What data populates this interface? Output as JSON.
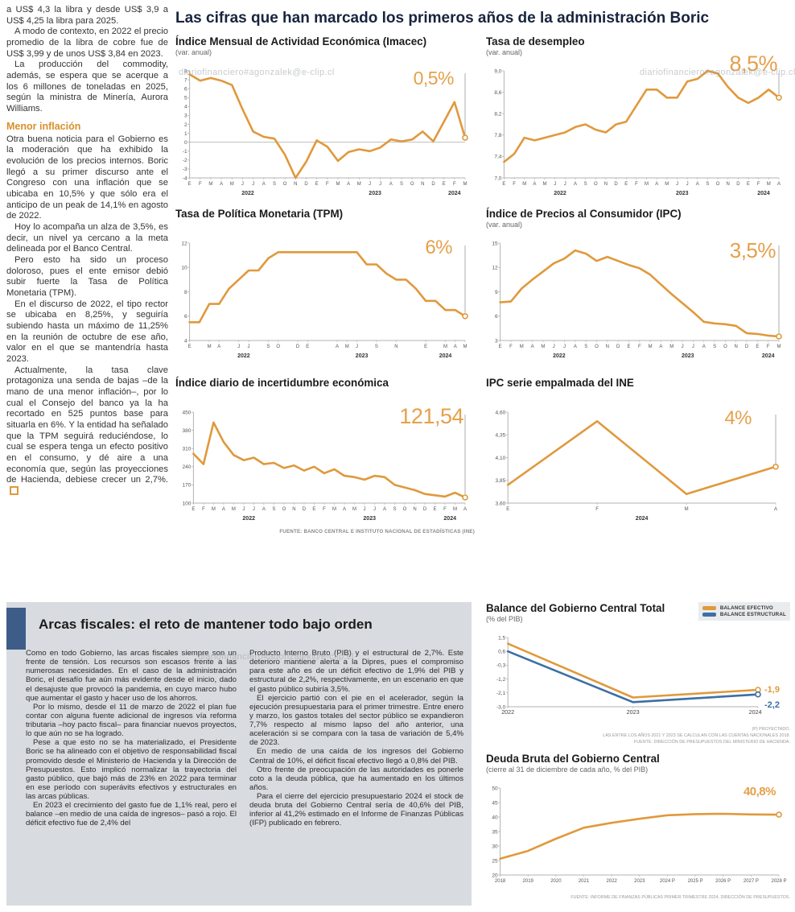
{
  "page": {
    "main_title": "Las cifras que han marcado los primeros años de la administración Boric",
    "watermark": "diariofinanciero#agonzalek@e-clip.cl"
  },
  "colors": {
    "accent_orange": "#E0993C",
    "accent_blue": "#3C6FA5",
    "panel_blue": "#3D5C88"
  },
  "left_article": {
    "intro_paragraphs": [
      "a US$ 4,3 la libra y desde US$ 3,9 a US$ 4,25 la libra para 2025.",
      "A modo de contexto, en 2022 el precio promedio de la libra de cobre fue de US$ 3,99 y de unos US$ 3,84 en 2023.",
      "La producción del commodity, además, se espera que se acerque a los 6 millones de toneladas en 2025, según la ministra de Minería, Aurora Williams."
    ],
    "heading": "Menor inflación",
    "body_paragraphs": [
      "Otra buena noticia para el Gobierno es la moderación que ha exhibido la evolución de los precios internos. Boric llegó a su primer discurso ante el Congreso con una inflación que se ubicaba en 10,5% y que sólo era el anticipo de un peak de 14,1% en agosto de 2022.",
      "Hoy lo acompaña un alza de 3,5%, es decir, un nivel ya cercano a la meta delineada por el Banco Central.",
      "Pero esto ha sido un proceso doloroso, pues el ente emisor debió subir fuerte la Tasa de Política Monetaria (TPM).",
      "En el discurso de 2022, el tipo rector se ubicaba en 8,25%, y seguiría subiendo hasta un máximo de 11,25% en la reunión de octubre de ese año, valor en el que se mantendría hasta 2023.",
      "Actualmente, la tasa clave protagoniza una senda de bajas –de la mano de una menor inflación–, por lo cual el Consejo del banco ya la ha recortado en 525 puntos base para situarla en 6%. Y la entidad ha señalado que la TPM seguirá reduciéndose, lo cual se espera tenga un efecto positivo en el consumo, y dé aire a una economía que, según las proyecciones de Hacienda, debiese crecer un 2,7%."
    ]
  },
  "sources": {
    "charts_top": "FUENTE: BANCO CENTRAL E INSTITUTO NACIONAL DE ESTADÍSTICAS (INE)",
    "balance_note1": "(P) PROYECTADO.",
    "balance_note2": "LAS ENTRE LOS AÑOS 2021 Y 2023 SE CALCULAN CON LAS CUENTAS NACIONALES 2018.",
    "balance_note3": "FUENTE: DIRECCIÓN DE PRESUPUESTOS DEL MINISTERIO DE HACIENDA.",
    "debt_source": "FUENTE: INFORME DE FINANZAS PÚBLICAS PRIMER TRIMESTRE 2024, DIRECCIÓN DE PRESUPUESTOS."
  },
  "fiscal_article": {
    "title": "Arcas fiscales: el reto de mantener todo bajo orden",
    "col1": [
      "Como en todo Gobierno, las arcas fiscales siempre son un frente de tensión. Los recursos son escasos frente a las numerosas necesidades. En el caso de la administración Boric, el desafío fue aún más evidente desde el inicio, dado el desajuste que provocó la pandemia, en cuyo marco hubo que aumentar el gasto y hacer uso de los ahorros.",
      "Por lo mismo, desde el 11 de marzo de 2022 el plan fue contar con alguna fuente adicional de ingresos vía reforma tributaria –hoy pacto fiscal– para financiar nuevos proyectos, lo que aún no se ha logrado.",
      "Pese a que esto no se ha materializado, el Presidente Boric se ha alineado con el objetivo de responsabilidad fiscal promovido desde el Ministerio de Hacienda y la Dirección de Presupuestos. Esto implicó normalizar la trayectoria del gasto público, que bajó más de 23% en 2022 para terminar en ese período con superávits efectivos y estructurales en las arcas públicas.",
      "En 2023 el crecimiento del gasto fue de 1,1% real, pero el balance –en medio de una caída de ingresos– pasó a rojo. El déficit efectivo fue de 2,4% del"
    ],
    "col2": [
      "Producto Interno Bruto (PIB) y el estructural de 2,7%. Este deterioro mantiene alerta a la Dipres, pues el compromiso para este año es de un déficit efectivo de 1,9% del PIB y estructural de 2,2%, respectivamente, en un escenario en que el gasto público subiría 3,5%.",
      "El ejercicio partió con el pie en el acelerador, según la ejecución presupuestaria para el primer trimestre. Entre enero y marzo, los gastos totales del sector público se expandieron 7,7% respecto al mismo lapso del año anterior, una aceleración si se compara con la tasa de variación de 5,4% de 2023.",
      "En medio de una caída de los ingresos del Gobierno Central de 10%, el déficit fiscal efectivo llegó a 0,8% del PIB.",
      "Otro frente de preocupación de las autoridades es ponerle coto a la deuda pública, que ha aumentado en los últimos años.",
      "Para el cierre del ejercicio presupuestario 2024 el stock de deuda bruta del Gobierno Central sería de 40,6% del PIB, inferior al 41,2% estimado en el Informe de Finanzas Públicas (IFP) publicado en febrero."
    ]
  },
  "chart_data": [
    {
      "type": "line",
      "title": "Índice Mensual de Actividad Económica (Imacec)",
      "subtitle": "(var. anual)",
      "highlight": "0,5%",
      "color": "#E0993C",
      "ylim": [
        -4,
        8
      ],
      "zero_line": true,
      "end_marker": true,
      "guide_line": true,
      "yticks": [
        {
          "v": 8,
          "label": "8"
        },
        {
          "v": 7,
          "label": "7"
        },
        {
          "v": 6,
          "label": "6"
        },
        {
          "v": 5,
          "label": "5"
        },
        {
          "v": 4,
          "label": "4"
        },
        {
          "v": 3,
          "label": "3"
        },
        {
          "v": 2,
          "label": "2"
        },
        {
          "v": 1,
          "label": "1"
        },
        {
          "v": 0,
          "label": "0"
        },
        {
          "v": -1,
          "label": "-1"
        },
        {
          "v": -2,
          "label": "-2"
        },
        {
          "v": -3,
          "label": "-3"
        },
        {
          "v": -4,
          "label": "-4"
        }
      ],
      "x_labels": [
        "E",
        "F",
        "M",
        "A",
        "M",
        "J",
        "J",
        "A",
        "S",
        "O",
        "N",
        "D",
        "E",
        "F",
        "M",
        "A",
        "M",
        "J",
        "J",
        "A",
        "S",
        "O",
        "N",
        "D",
        "E",
        "F",
        "M"
      ],
      "years": [
        {
          "label": "2022",
          "index": 5.5
        },
        {
          "label": "2023",
          "index": 17.5
        },
        {
          "label": "2024",
          "index": 25
        }
      ],
      "values": [
        7.6,
        6.9,
        7.2,
        6.9,
        6.4,
        3.7,
        1.2,
        0.6,
        0.4,
        -1.4,
        -4.0,
        -2.2,
        0.2,
        -0.5,
        -2.1,
        -1.1,
        -0.8,
        -1.0,
        -0.6,
        0.3,
        0.1,
        0.3,
        1.2,
        0.1,
        2.3,
        4.5,
        0.5
      ]
    },
    {
      "type": "line",
      "title": "Tasa de desempleo",
      "subtitle": "(var. anual)",
      "highlight": "8,5%",
      "color": "#E0993C",
      "ylim": [
        7.0,
        9.0
      ],
      "end_marker": true,
      "guide_line": true,
      "yticks": [
        {
          "v": 9.0,
          "label": "9,0"
        },
        {
          "v": 8.6,
          "label": "8,6"
        },
        {
          "v": 8.2,
          "label": "8,2"
        },
        {
          "v": 7.8,
          "label": "7,8"
        },
        {
          "v": 7.4,
          "label": "7,4"
        },
        {
          "v": 7.0,
          "label": "7,0"
        }
      ],
      "x_labels": [
        "E",
        "F",
        "M",
        "A",
        "M",
        "J",
        "J",
        "A",
        "S",
        "O",
        "N",
        "D",
        "E",
        "F",
        "M",
        "A",
        "M",
        "J",
        "J",
        "A",
        "S",
        "O",
        "N",
        "D",
        "E",
        "F",
        "M",
        "A"
      ],
      "years": [
        {
          "label": "2022",
          "index": 5.5
        },
        {
          "label": "2023",
          "index": 17.5
        },
        {
          "label": "2024",
          "index": 25.5
        }
      ],
      "values": [
        7.3,
        7.45,
        7.75,
        7.7,
        7.75,
        7.8,
        7.85,
        7.95,
        8.0,
        7.9,
        7.85,
        8.0,
        8.05,
        8.35,
        8.65,
        8.65,
        8.5,
        8.5,
        8.8,
        8.85,
        9.0,
        8.95,
        8.7,
        8.5,
        8.4,
        8.5,
        8.65,
        8.5
      ]
    },
    {
      "type": "line",
      "title": "Tasa de Política Monetaria (TPM)",
      "subtitle": "",
      "highlight": "6%",
      "color": "#E0993C",
      "ylim": [
        4,
        12
      ],
      "end_marker": true,
      "guide_line": true,
      "yticks": [
        {
          "v": 12,
          "label": "12"
        },
        {
          "v": 10,
          "label": "10"
        },
        {
          "v": 8,
          "label": "8"
        },
        {
          "v": 6,
          "label": "6"
        },
        {
          "v": 4,
          "label": "4"
        }
      ],
      "x_labels": [
        "E",
        "",
        "M",
        "A",
        "",
        "J",
        "J",
        "",
        "S",
        "O",
        "",
        "D",
        "E",
        "",
        "",
        "A",
        "M",
        "J",
        "",
        "S",
        "",
        "N",
        "",
        "",
        "E",
        "",
        "M",
        "A",
        "M"
      ],
      "years": [
        {
          "label": "2022",
          "index": 5.5
        },
        {
          "label": "2023",
          "index": 17.5
        },
        {
          "label": "2024",
          "index": 26
        }
      ],
      "values": [
        5.5,
        5.5,
        7.0,
        7.0,
        8.25,
        9.0,
        9.75,
        9.75,
        10.75,
        11.25,
        11.25,
        11.25,
        11.25,
        11.25,
        11.25,
        11.25,
        11.25,
        11.25,
        10.25,
        10.25,
        9.5,
        9.0,
        9.0,
        8.25,
        7.25,
        7.25,
        6.5,
        6.5,
        6.0
      ]
    },
    {
      "type": "line",
      "title": "Índice de Precios al Consumidor (IPC)",
      "subtitle": "(var. anual)",
      "highlight": "3,5%",
      "color": "#E0993C",
      "ylim": [
        3,
        15
      ],
      "end_marker": true,
      "guide_line": true,
      "yticks": [
        {
          "v": 15,
          "label": "15"
        },
        {
          "v": 12,
          "label": "12"
        },
        {
          "v": 9,
          "label": "9"
        },
        {
          "v": 6,
          "label": "6"
        },
        {
          "v": 3,
          "label": "3"
        }
      ],
      "x_labels": [
        "E",
        "F",
        "M",
        "A",
        "M",
        "J",
        "J",
        "A",
        "S",
        "O",
        "N",
        "D",
        "E",
        "F",
        "M",
        "A",
        "M",
        "J",
        "J",
        "A",
        "S",
        "O",
        "N",
        "D",
        "E",
        "F",
        "M"
      ],
      "years": [
        {
          "label": "2022",
          "index": 5.5
        },
        {
          "label": "2023",
          "index": 17.5
        },
        {
          "label": "2024",
          "index": 25
        }
      ],
      "values": [
        7.7,
        7.8,
        9.4,
        10.5,
        11.5,
        12.5,
        13.1,
        14.1,
        13.7,
        12.8,
        13.3,
        12.8,
        12.3,
        11.9,
        11.1,
        9.9,
        8.7,
        7.6,
        6.5,
        5.3,
        5.1,
        5.0,
        4.8,
        3.9,
        3.8,
        3.6,
        3.5
      ]
    },
    {
      "type": "line",
      "title": "Índice diario de incertidumbre económica",
      "subtitle": "",
      "highlight": "121,54",
      "color": "#E0993C",
      "ylim": [
        100,
        450
      ],
      "end_marker": true,
      "guide_line": true,
      "yticks": [
        {
          "v": 450,
          "label": "450"
        },
        {
          "v": 380,
          "label": "380"
        },
        {
          "v": 310,
          "label": "310"
        },
        {
          "v": 240,
          "label": "240"
        },
        {
          "v": 170,
          "label": "170"
        },
        {
          "v": 100,
          "label": "100"
        }
      ],
      "x_labels": [
        "E",
        "F",
        "M",
        "A",
        "M",
        "J",
        "J",
        "A",
        "S",
        "O",
        "N",
        "D",
        "E",
        "F",
        "M",
        "A",
        "M",
        "J",
        "J",
        "A",
        "S",
        "O",
        "N",
        "D",
        "E",
        "F",
        "M",
        "A"
      ],
      "years": [
        {
          "label": "2022",
          "index": 5.5
        },
        {
          "label": "2023",
          "index": 17.5
        },
        {
          "label": "2024",
          "index": 25.5
        }
      ],
      "values": [
        290,
        250,
        410,
        335,
        285,
        265,
        275,
        250,
        255,
        235,
        245,
        225,
        240,
        215,
        230,
        205,
        200,
        190,
        205,
        200,
        170,
        160,
        150,
        135,
        130,
        125,
        140,
        121.54
      ]
    },
    {
      "type": "line",
      "title": "IPC serie empalmada del INE",
      "subtitle": "",
      "highlight": "4%",
      "color": "#E0993C",
      "ylim": [
        3.6,
        4.6
      ],
      "right_pad": 16,
      "end_marker": true,
      "guide_line": true,
      "yticks": [
        {
          "v": 4.6,
          "label": "4,60"
        },
        {
          "v": 4.35,
          "label": "4,35"
        },
        {
          "v": 4.1,
          "label": "4,10"
        },
        {
          "v": 3.85,
          "label": "3,85"
        },
        {
          "v": 3.6,
          "label": "3,60"
        }
      ],
      "x_labels": [
        "E",
        "F",
        "M",
        "A"
      ],
      "years": [
        {
          "label": "2024",
          "index": 1.5
        }
      ],
      "values": [
        3.8,
        4.5,
        3.7,
        4.0
      ]
    },
    {
      "type": "line",
      "title": "Balance del Gobierno Central Total",
      "subtitle": "(% del PIB)",
      "ylim": [
        -3.0,
        1.5
      ],
      "right_pad": 6,
      "xclass": "xb",
      "yticks": [
        {
          "v": 1.5,
          "label": "1,5"
        },
        {
          "v": 0.6,
          "label": "0,6"
        },
        {
          "v": -0.3,
          "label": "-0,3"
        },
        {
          "v": -1.2,
          "label": "-1,2"
        },
        {
          "v": -2.1,
          "label": "-2,1"
        },
        {
          "v": -3.0,
          "label": "-3,0"
        }
      ],
      "x_labels": [
        "2022",
        "2023",
        "2024 P"
      ],
      "series": [
        {
          "name": "BALANCE EFECTIVO",
          "color": "#E0993C",
          "values": [
            1.1,
            -2.4,
            -1.9
          ],
          "end_marker": true,
          "highlight": "-1,9"
        },
        {
          "name": "BALANCE ESTRUCTURAL",
          "color": "#3C6FA5",
          "values": [
            0.6,
            -2.7,
            -2.2
          ],
          "end_marker": true,
          "highlight": "-2,2"
        }
      ]
    },
    {
      "type": "line",
      "title": "Deuda Bruta del Gobierno Central",
      "subtitle": "(cierre al 31 de diciembre de cada año, % del PIB)",
      "highlight": "40,8%",
      "color": "#E0993C",
      "ylim": [
        20,
        50
      ],
      "right_pad": 14,
      "xclass": "xt",
      "end_marker": true,
      "yticks": [
        {
          "v": 50,
          "label": "50"
        },
        {
          "v": 45,
          "label": "45"
        },
        {
          "v": 40,
          "label": "40"
        },
        {
          "v": 35,
          "label": "35"
        },
        {
          "v": 30,
          "label": "30"
        },
        {
          "v": 25,
          "label": "25"
        },
        {
          "v": 20,
          "label": "20"
        }
      ],
      "x_labels": [
        "2018",
        "2019",
        "2020",
        "2021",
        "2022",
        "2023",
        "2024 P",
        "2025 P",
        "2026 P",
        "2027 P",
        "2028 P"
      ],
      "values": [
        25.6,
        28.3,
        32.5,
        36.3,
        38.0,
        39.4,
        40.6,
        41.0,
        41.1,
        40.9,
        40.8
      ]
    }
  ]
}
